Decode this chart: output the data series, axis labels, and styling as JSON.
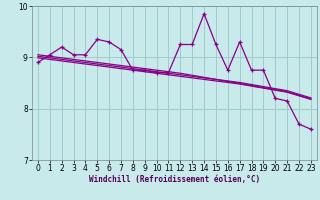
{
  "xlabel": "Windchill (Refroidissement éolien,°C)",
  "xlim": [
    -0.5,
    23.5
  ],
  "ylim": [
    7,
    10
  ],
  "yticks": [
    7,
    8,
    9,
    10
  ],
  "xticks": [
    0,
    1,
    2,
    3,
    4,
    5,
    6,
    7,
    8,
    9,
    10,
    11,
    12,
    13,
    14,
    15,
    16,
    17,
    18,
    19,
    20,
    21,
    22,
    23
  ],
  "background_color": "#c8eaea",
  "grid_color": "#a0cccc",
  "line_color": "#880088",
  "data_line": [
    8.9,
    9.05,
    9.2,
    9.05,
    9.05,
    9.35,
    9.3,
    9.15,
    8.75,
    8.75,
    8.7,
    8.7,
    9.25,
    9.25,
    9.85,
    9.25,
    8.75,
    9.3,
    8.75,
    8.75,
    8.2,
    8.15,
    7.7,
    7.6
  ],
  "trend_line1": [
    9.02,
    8.99,
    8.96,
    8.93,
    8.9,
    8.87,
    8.84,
    8.81,
    8.78,
    8.75,
    8.72,
    8.69,
    8.66,
    8.63,
    8.6,
    8.57,
    8.54,
    8.51,
    8.47,
    8.43,
    8.39,
    8.35,
    8.28,
    8.21
  ],
  "trend_line2": [
    9.05,
    9.02,
    8.99,
    8.96,
    8.93,
    8.9,
    8.87,
    8.84,
    8.81,
    8.78,
    8.75,
    8.72,
    8.69,
    8.65,
    8.61,
    8.57,
    8.53,
    8.49,
    8.45,
    8.41,
    8.37,
    8.33,
    8.26,
    8.19
  ],
  "trend_line3": [
    8.99,
    8.96,
    8.93,
    8.9,
    8.87,
    8.84,
    8.81,
    8.78,
    8.75,
    8.72,
    8.69,
    8.66,
    8.63,
    8.6,
    8.57,
    8.54,
    8.51,
    8.48,
    8.44,
    8.4,
    8.36,
    8.32,
    8.25,
    8.18
  ]
}
